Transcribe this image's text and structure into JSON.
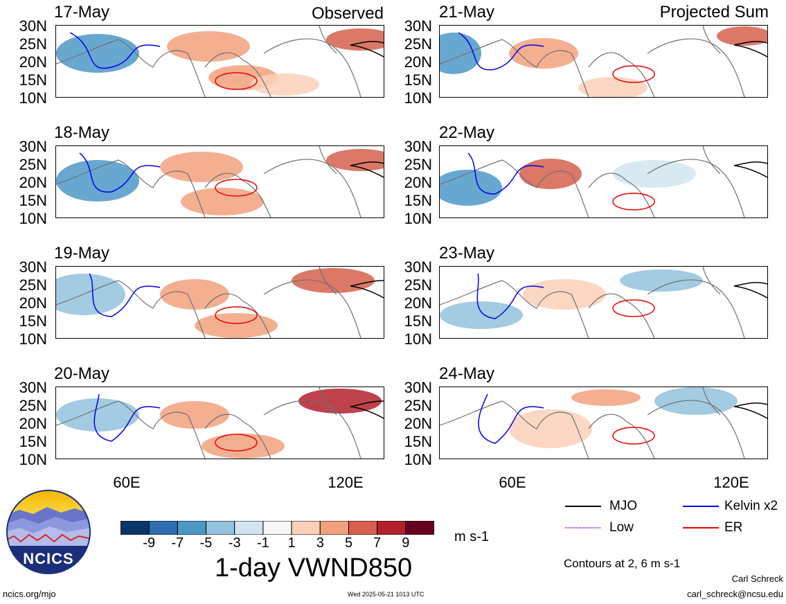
{
  "panels": [
    {
      "date": "17-May",
      "corner": "Observed"
    },
    {
      "date": "21-May",
      "corner": "Projected Sum"
    },
    {
      "date": "18-May",
      "corner": ""
    },
    {
      "date": "22-May",
      "corner": ""
    },
    {
      "date": "19-May",
      "corner": ""
    },
    {
      "date": "23-May",
      "corner": ""
    },
    {
      "date": "20-May",
      "corner": ""
    },
    {
      "date": "24-May",
      "corner": ""
    }
  ],
  "lat_labels": [
    "30N",
    "25N",
    "20N",
    "15N",
    "10N"
  ],
  "lon_labels": [
    "60E",
    "120E"
  ],
  "colorbar": {
    "ticks": [
      "-9",
      "-7",
      "-5",
      "-3",
      "-1",
      "1",
      "3",
      "5",
      "7",
      "9"
    ],
    "colors": [
      "#0b3466",
      "#2d6db0",
      "#4e98c8",
      "#93c2dd",
      "#d1e5f0",
      "#f7f7f7",
      "#fbd0b8",
      "#f2a17e",
      "#d6604d",
      "#b3202c",
      "#67001f"
    ],
    "units": "m s-1"
  },
  "title": "1-day VWND850",
  "legend": {
    "mjo": {
      "label": "MJO",
      "color": "#000000"
    },
    "kelvin": {
      "label": "Kelvin x2",
      "color": "#0000ee"
    },
    "low": {
      "label": "Low",
      "color": "#a020f0"
    },
    "er": {
      "label": "ER",
      "color": "#ee0000"
    }
  },
  "contour_note": "Contours at 2, 6 m s-1",
  "footer": {
    "url": "ncics.org/mjo",
    "timestamp": "Wed 2025-05-21 1013 UTC",
    "author": "Carl Schreck",
    "email": "carl_schreck@ncsu.edu"
  },
  "logo_text": "NCICS"
}
